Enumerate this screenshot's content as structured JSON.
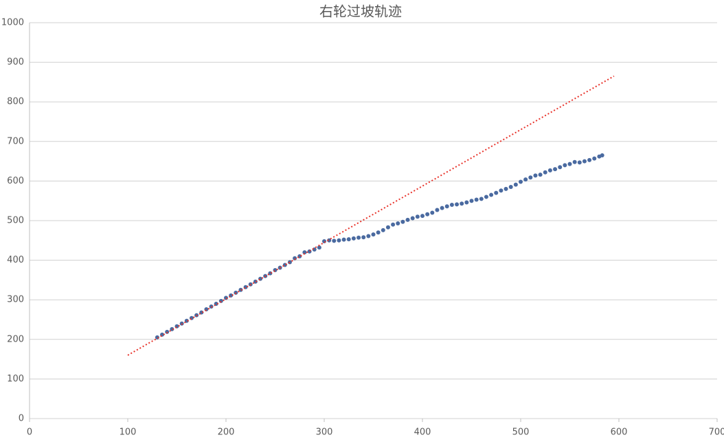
{
  "chart_data": {
    "type": "scatter",
    "title": "右轮过坡轨迹",
    "xlim": [
      0,
      700
    ],
    "xticks": [
      0,
      100,
      200,
      300,
      400,
      500,
      600,
      700
    ],
    "ylim": [
      0,
      1000
    ],
    "yticks": [
      0,
      100,
      200,
      300,
      400,
      500,
      600,
      700,
      800,
      900,
      1000
    ],
    "grid": true,
    "series": [
      {
        "color": "#4a6aa0",
        "x": [
          130,
          135,
          140,
          145,
          150,
          155,
          160,
          165,
          170,
          175,
          180,
          185,
          190,
          195,
          200,
          205,
          210,
          215,
          220,
          225,
          230,
          235,
          240,
          245,
          250,
          255,
          260,
          265,
          270,
          275,
          280,
          285,
          290,
          295,
          300,
          305,
          310,
          315,
          320,
          325,
          330,
          335,
          340,
          345,
          350,
          355,
          360,
          365,
          370,
          375,
          380,
          385,
          390,
          395,
          400,
          405,
          410,
          415,
          420,
          425,
          430,
          435,
          440,
          445,
          450,
          455,
          460,
          465,
          470,
          475,
          480,
          485,
          490,
          495,
          500,
          505,
          510,
          515,
          520,
          525,
          530,
          535,
          540,
          545,
          550,
          555,
          560,
          565,
          570,
          575,
          580,
          583
        ],
        "values": [
          205,
          212,
          219,
          226,
          233,
          240,
          247,
          254,
          261,
          268,
          276,
          283,
          290,
          297,
          305,
          311,
          318,
          325,
          332,
          339,
          346,
          353,
          360,
          367,
          375,
          381,
          388,
          395,
          405,
          410,
          420,
          422,
          427,
          432,
          448,
          450,
          449,
          450,
          452,
          453,
          455,
          457,
          458,
          461,
          465,
          470,
          476,
          483,
          490,
          493,
          497,
          502,
          506,
          510,
          512,
          516,
          520,
          527,
          532,
          536,
          540,
          541,
          543,
          546,
          550,
          553,
          555,
          560,
          565,
          570,
          576,
          580,
          585,
          591,
          598,
          604,
          609,
          614,
          616,
          622,
          627,
          630,
          635,
          640,
          643,
          648,
          647,
          650,
          653,
          657,
          662,
          665
        ]
      }
    ],
    "trendline": {
      "color": "#e8322a",
      "x": [
        100,
        595
      ],
      "values": [
        160,
        865
      ]
    }
  }
}
